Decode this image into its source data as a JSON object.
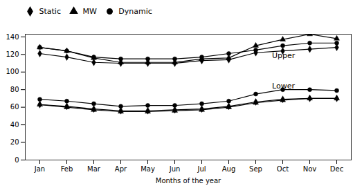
{
  "chart_data": {
    "type": "line",
    "xlabel": "Months of the year",
    "categories": [
      "Jan",
      "Feb",
      "Mar",
      "Apr",
      "May",
      "Jun",
      "Jul",
      "Aug",
      "Sep",
      "Oct",
      "Nov",
      "Dec"
    ],
    "series": [
      {
        "name": "Static",
        "color": "#000000",
        "marker": "diamond",
        "values": [
          121,
          117,
          111,
          110,
          110,
          110,
          113,
          114,
          122,
          124,
          126,
          128
        ]
      },
      {
        "name": "MW",
        "color": "#000000",
        "marker": "triangle",
        "values": [
          128,
          124,
          116,
          111,
          111,
          111,
          115,
          116,
          130,
          137,
          143,
          138
        ]
      },
      {
        "name": "Dynamic",
        "color": "#000000",
        "marker": "circle",
        "values": [
          128,
          124,
          117,
          115,
          115,
          115,
          117,
          121,
          125,
          130,
          133,
          133
        ]
      },
      {
        "name": "Static",
        "color": "#000000",
        "marker": "diamond",
        "values": [
          63,
          61,
          58,
          56,
          56,
          57,
          58,
          61,
          66,
          69,
          70,
          70
        ]
      },
      {
        "name": "MW",
        "color": "#000000",
        "marker": "triangle",
        "values": [
          63,
          60,
          57,
          55,
          55,
          56,
          57,
          60,
          65,
          68,
          70,
          70
        ]
      },
      {
        "name": "Dynamic",
        "color": "#000000",
        "marker": "circle",
        "values": [
          69,
          67,
          64,
          61,
          62,
          62,
          64,
          67,
          75,
          80,
          80,
          79
        ]
      }
    ],
    "ylim": [
      0,
      143
    ],
    "yticks": [
      0,
      20,
      40,
      60,
      80,
      100,
      120,
      140
    ],
    "grid": false,
    "legend": "top",
    "annotations": [
      {
        "text": "Upper",
        "x": "Sep",
        "y": 119
      },
      {
        "text": "Lower",
        "x": "Sep",
        "y": 84
      }
    ]
  }
}
